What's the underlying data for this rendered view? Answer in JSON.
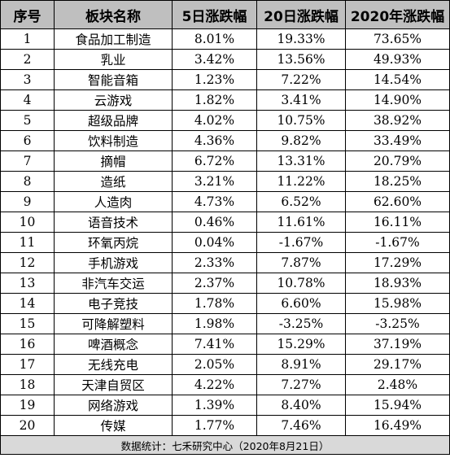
{
  "headers": [
    "序号",
    "板块名称",
    "5日涨跌幅",
    "20日涨跌幅",
    "2020年涨跌幅"
  ],
  "rows": [
    [
      "1",
      "食品加工制造",
      "8.01%",
      "19.33%",
      "73.65%"
    ],
    [
      "2",
      "乳业",
      "3.42%",
      "13.56%",
      "49.93%"
    ],
    [
      "3",
      "智能音箱",
      "1.23%",
      "7.22%",
      "14.54%"
    ],
    [
      "4",
      "云游戏",
      "1.82%",
      "3.41%",
      "14.90%"
    ],
    [
      "5",
      "超级品牌",
      "4.02%",
      "10.75%",
      "38.92%"
    ],
    [
      "6",
      "饮料制造",
      "4.36%",
      "9.82%",
      "33.49%"
    ],
    [
      "7",
      "摘帽",
      "6.72%",
      "13.31%",
      "20.79%"
    ],
    [
      "8",
      "造纸",
      "3.21%",
      "11.22%",
      "18.25%"
    ],
    [
      "9",
      "人造肉",
      "4.73%",
      "6.52%",
      "62.60%"
    ],
    [
      "10",
      "语音技术",
      "0.46%",
      "11.61%",
      "16.11%"
    ],
    [
      "11",
      "环氧丙烷",
      "0.04%",
      "-1.67%",
      "-1.67%"
    ],
    [
      "12",
      "手机游戏",
      "2.33%",
      "7.87%",
      "17.29%"
    ],
    [
      "13",
      "非汽车交运",
      "2.37%",
      "10.78%",
      "18.93%"
    ],
    [
      "14",
      "电子竞技",
      "1.78%",
      "6.60%",
      "15.98%"
    ],
    [
      "15",
      "可降解塑料",
      "1.98%",
      "-3.25%",
      "-3.25%"
    ],
    [
      "16",
      "啤酒概念",
      "7.41%",
      "15.29%",
      "37.19%"
    ],
    [
      "17",
      "无线充电",
      "2.05%",
      "8.91%",
      "29.17%"
    ],
    [
      "18",
      "天津自贸区",
      "4.22%",
      "7.27%",
      "2.48%"
    ],
    [
      "19",
      "网络游戏",
      "1.39%",
      "8.40%",
      "15.94%"
    ],
    [
      "20",
      "传媒",
      "1.77%",
      "7.46%",
      "16.49%"
    ]
  ],
  "footer": "数据统计：七禾研究中心（2020年8月21日）",
  "colors": {
    "header_bg": "#bfbfbf",
    "footer_bg": "#d9d9d9",
    "border": "#000000"
  }
}
